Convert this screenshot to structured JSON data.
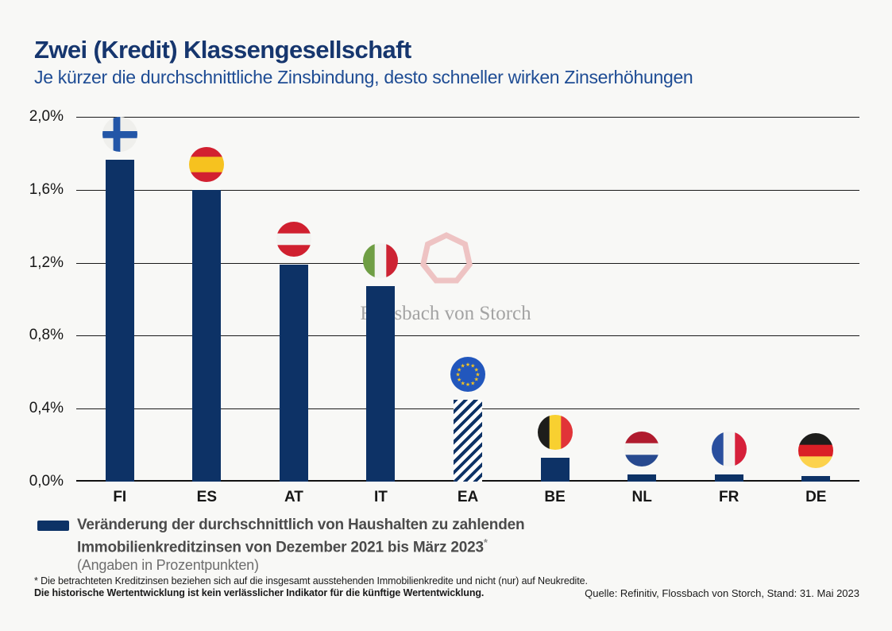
{
  "header": {
    "title": "Zwei (Kredit) Klassengesellschaft",
    "subtitle": "Je kürzer die durchschnittliche Zinsbindung, desto schneller wirken Zinserhöhungen"
  },
  "chart_data": {
    "type": "bar",
    "title": "Zwei (Kredit) Klassengesellschaft",
    "subtitle": "Je kürzer die durchschnittliche Zinsbindung, desto schneller wirken Zinserhöhungen",
    "categories": [
      "FI",
      "ES",
      "AT",
      "IT",
      "EA",
      "BE",
      "NL",
      "FR",
      "DE"
    ],
    "values": [
      1.85,
      1.6,
      1.19,
      1.07,
      0.45,
      0.13,
      0.04,
      0.04,
      0.03
    ],
    "series_label": "Veränderung der durchschnittlich von Haushalten zu zahlenden Immobilienkreditzinsen von Dezember 2021 bis März 2023 (Angaben in Prozentpunkten)",
    "ylim": [
      0,
      2.0
    ],
    "yticks": [
      "2,0%",
      "1,6%",
      "1,2%",
      "0,8%",
      "0,4%",
      "0,0%"
    ],
    "grid": true,
    "legend_position": "bottom-left",
    "bar_color": "#0d3266",
    "hatched_category": "EA"
  },
  "flags": {
    "FI": {
      "kind": "nordic",
      "bg": "#efefec",
      "cross": "#2356a7"
    },
    "ES": {
      "kind": "h",
      "colors": [
        "#d22030",
        "#f6c21f",
        "#d22030"
      ],
      "ratios": [
        0.28,
        0.44,
        0.28
      ]
    },
    "AT": {
      "kind": "h",
      "colors": [
        "#d0202f",
        "#f3f3f1",
        "#d0202f"
      ],
      "ratios": [
        0.333,
        0.334,
        0.333
      ]
    },
    "IT": {
      "kind": "v",
      "colors": [
        "#6f9e44",
        "#f3f3f1",
        "#cd2333"
      ],
      "ratios": [
        0.333,
        0.334,
        0.333
      ]
    },
    "EA": {
      "kind": "eu",
      "bg": "#2257bd",
      "star": "#f7c51e"
    },
    "BE": {
      "kind": "v",
      "colors": [
        "#1d1d1b",
        "#f8d030",
        "#e13438"
      ],
      "ratios": [
        0.333,
        0.334,
        0.333
      ]
    },
    "NL": {
      "kind": "h",
      "colors": [
        "#b01b2e",
        "#f3f3f1",
        "#27498f"
      ],
      "ratios": [
        0.333,
        0.334,
        0.333
      ]
    },
    "FR": {
      "kind": "v",
      "colors": [
        "#2a4f9e",
        "#f3f3f1",
        "#d6203a"
      ],
      "ratios": [
        0.333,
        0.334,
        0.333
      ]
    },
    "DE": {
      "kind": "h",
      "colors": [
        "#1d1d1b",
        "#da1f26",
        "#fcd24c"
      ],
      "ratios": [
        0.333,
        0.334,
        0.333
      ]
    }
  },
  "legend": {
    "line1": "Veränderung der durchschnittlich von Haushalten zu zahlenden",
    "line2": "Immobilienkreditzinsen von Dezember 2021 bis März 2023",
    "asterisk": "*",
    "note": "(Angaben in Prozentpunkten)",
    "swatch_color": "#0d3266"
  },
  "watermark": {
    "text": "Flossbach von Storch"
  },
  "footnotes": {
    "line1": "* Die betrachteten Kreditzinsen beziehen sich auf die insgesamt ausstehenden Immobilienkredite und nicht (nur) auf Neukredite.",
    "line2": "Die historische Wertentwicklung ist kein verlässlicher Indikator für die künftige Wertentwicklung."
  },
  "source": "Quelle: Refinitiv, Flossbach von Storch, Stand: 31. Mai 2023",
  "colors": {
    "background": "#f8f8f6",
    "title": "#16366e",
    "subtitle": "#1e4c94",
    "bar": "#0d3266",
    "grid": "#1a1a1a",
    "watermark_outline": "#eec3c3",
    "watermark_text": "#a3a3a3"
  }
}
